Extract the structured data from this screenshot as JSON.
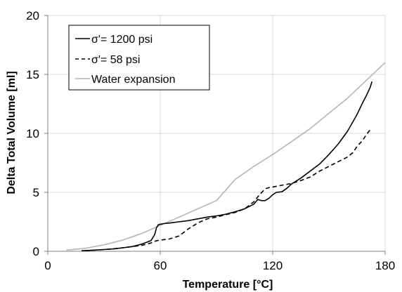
{
  "chart_data": {
    "type": "line",
    "xlabel": "Temperature [°C]",
    "ylabel": "Delta Total Volume [ml]",
    "xlim": [
      0,
      180
    ],
    "ylim": [
      0,
      20
    ],
    "x_ticks": [
      "0",
      "60",
      "120",
      "180"
    ],
    "y_ticks": [
      "0",
      "5",
      "10",
      "15",
      "20"
    ],
    "grid": "major gridlines on both axes",
    "legend_position": "top-left",
    "series": [
      {
        "name": "σ'= 1200 psi",
        "style": "solid",
        "color": "#000000",
        "x": [
          18,
          25,
          30,
          35,
          40,
          45,
          50,
          55,
          57,
          58,
          59,
          60,
          62,
          65,
          70,
          75,
          80,
          85,
          90,
          95,
          100,
          105,
          110,
          112,
          114,
          116,
          118,
          120,
          122,
          125,
          128,
          130,
          135,
          140,
          145,
          150,
          155,
          160,
          165,
          168,
          170,
          172,
          173
        ],
        "y": [
          0.05,
          0.1,
          0.15,
          0.2,
          0.3,
          0.4,
          0.6,
          0.9,
          1.4,
          2.0,
          2.25,
          2.3,
          2.35,
          2.4,
          2.5,
          2.6,
          2.75,
          2.9,
          3.0,
          3.15,
          3.35,
          3.6,
          4.0,
          4.4,
          4.3,
          4.3,
          4.5,
          4.8,
          5.0,
          5.05,
          5.4,
          5.7,
          6.2,
          6.8,
          7.4,
          8.2,
          9.1,
          10.2,
          11.6,
          12.6,
          13.2,
          13.9,
          14.4
        ]
      },
      {
        "name": "σ'= 58 psi",
        "style": "dashed",
        "color": "#000000",
        "x": [
          20,
          25,
          30,
          35,
          40,
          45,
          50,
          55,
          58,
          60,
          65,
          70,
          75,
          80,
          85,
          90,
          95,
          100,
          105,
          110,
          113,
          116,
          118,
          120,
          125,
          130,
          135,
          140,
          145,
          150,
          155,
          160,
          163,
          165,
          168,
          170,
          172
        ],
        "y": [
          0.05,
          0.1,
          0.15,
          0.2,
          0.3,
          0.4,
          0.5,
          0.7,
          0.9,
          0.95,
          1.05,
          1.3,
          1.9,
          2.4,
          2.75,
          2.9,
          3.1,
          3.3,
          3.6,
          4.2,
          4.8,
          5.3,
          5.4,
          5.45,
          5.6,
          5.75,
          6.0,
          6.3,
          6.8,
          7.2,
          7.6,
          8.0,
          8.4,
          8.9,
          9.4,
          9.9,
          10.3
        ]
      },
      {
        "name": "Water expansion",
        "style": "solid",
        "color": "#b4b4b4",
        "x": [
          10,
          20,
          30,
          40,
          50,
          60,
          70,
          80,
          90,
          100,
          110,
          120,
          130,
          140,
          150,
          160,
          170,
          180
        ],
        "y": [
          0.1,
          0.25,
          0.55,
          0.95,
          1.5,
          2.2,
          2.9,
          3.6,
          4.3,
          6.1,
          7.2,
          8.2,
          9.3,
          10.4,
          11.7,
          13.0,
          14.5,
          16.0
        ]
      }
    ]
  },
  "colors": {
    "grid": "#d9d9d9",
    "axis": "#7f7f7f",
    "legend_border": "#000000"
  }
}
